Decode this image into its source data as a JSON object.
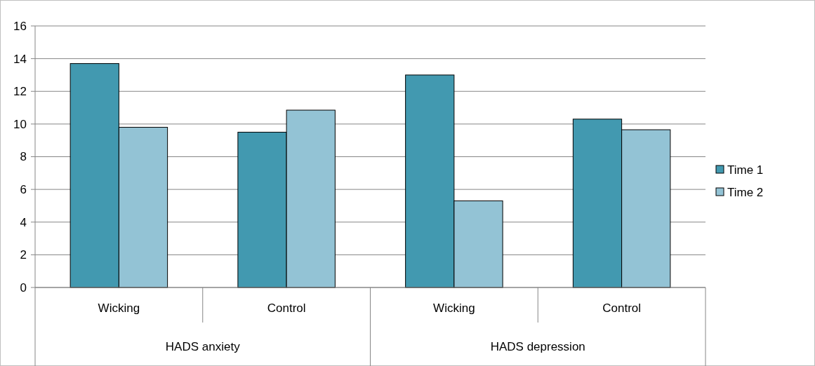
{
  "chart_data": {
    "type": "bar",
    "categories": [
      "Wicking",
      "Control",
      "Wicking",
      "Control"
    ],
    "series": [
      {
        "name": "Time 1",
        "color": "#4299b0",
        "values": [
          13.7,
          9.5,
          13.0,
          10.3
        ]
      },
      {
        "name": "Time 2",
        "color": "#93c3d5",
        "values": [
          9.8,
          10.85,
          5.3,
          9.65
        ]
      }
    ],
    "annotations": [
      "HADS anxiety",
      "HADS depression"
    ],
    "ylim": [
      0,
      16
    ],
    "yticks": [
      0,
      2,
      4,
      6,
      8,
      10,
      12,
      14,
      16
    ],
    "grid": "y",
    "legend": "right"
  }
}
